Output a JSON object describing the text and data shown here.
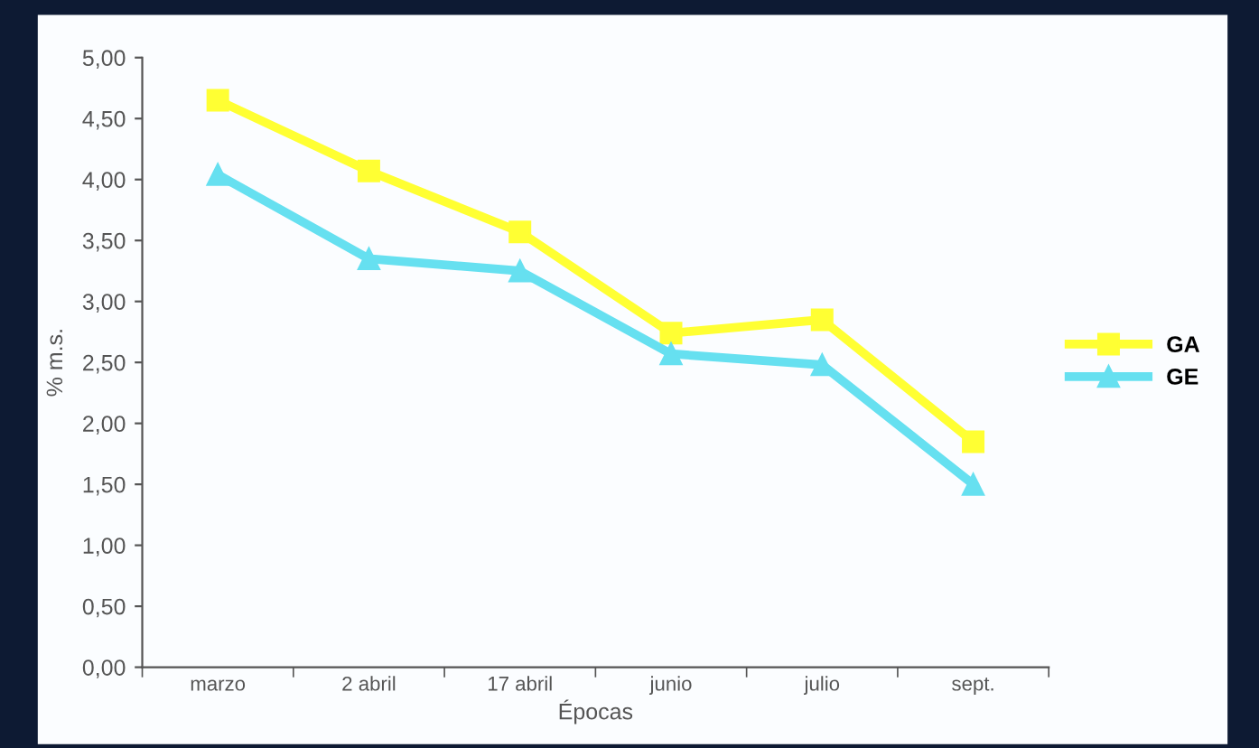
{
  "chart_data": {
    "type": "line",
    "xlabel": "Épocas",
    "ylabel": "% m.s.",
    "categories": [
      "marzo",
      "2 abril",
      "17 abril",
      "junio",
      "julio",
      "sept."
    ],
    "series": [
      {
        "name": "GA",
        "color": "#ffff33",
        "marker": "square",
        "values": [
          4.65,
          4.07,
          3.57,
          2.74,
          2.85,
          1.85
        ]
      },
      {
        "name": "GE",
        "color": "#66e0f0",
        "marker": "triangle",
        "values": [
          4.04,
          3.35,
          3.25,
          2.57,
          2.48,
          1.5
        ]
      }
    ],
    "ylim": [
      0,
      5
    ],
    "yticks": [
      {
        "value": 0,
        "label": "0,00"
      },
      {
        "value": 0.5,
        "label": "0,50"
      },
      {
        "value": 1,
        "label": "1,00"
      },
      {
        "value": 1.5,
        "label": "1,50"
      },
      {
        "value": 2,
        "label": "2,00"
      },
      {
        "value": 2.5,
        "label": "2,50"
      },
      {
        "value": 3,
        "label": "3,00"
      },
      {
        "value": 3.5,
        "label": "3,50"
      },
      {
        "value": 4,
        "label": "4,00"
      },
      {
        "value": 4.5,
        "label": "4,50"
      },
      {
        "value": 5,
        "label": "5,00"
      }
    ],
    "grid": false,
    "legend": "right",
    "line_style": "solid"
  }
}
